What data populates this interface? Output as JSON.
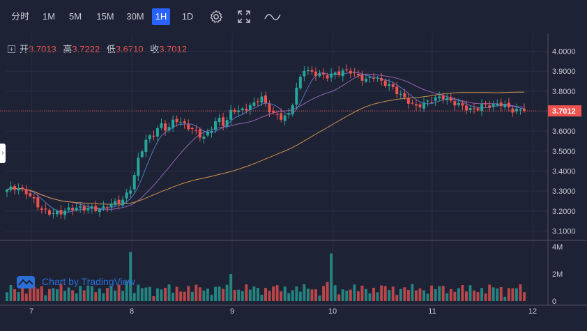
{
  "toolbar": {
    "intervals": [
      {
        "label": "分时",
        "active": false
      },
      {
        "label": "1M",
        "active": false
      },
      {
        "label": "5M",
        "active": false
      },
      {
        "label": "15M",
        "active": false
      },
      {
        "label": "30M",
        "active": false
      },
      {
        "label": "1H",
        "active": true
      },
      {
        "label": "1D",
        "active": false
      }
    ],
    "icons": [
      "settings-gear-icon",
      "fullscreen-icon",
      "chart-style-wave-icon"
    ]
  },
  "ohlc": {
    "open_label": "开",
    "open": "3.7013",
    "high_label": "高",
    "high": "3.7222",
    "low_label": "低",
    "low": "3.6710",
    "close_label": "收",
    "close": "3.7012"
  },
  "watermark": "Chart by TradingView",
  "colors": {
    "background": "#1e2235",
    "up": "#26a69a",
    "down": "#ef5350",
    "price_line": "#ef5350",
    "ma_fast": "#5b7fd6",
    "ma_mid": "#9c6bc4",
    "ma_slow": "#e0a050"
  },
  "chart_data": {
    "type": "candlestick",
    "price_axis": {
      "ticks": [
        "4.0000",
        "3.9000",
        "3.8000",
        "3.7000",
        "3.6000",
        "3.5000",
        "3.4000",
        "3.3000",
        "3.2000",
        "3.1000"
      ],
      "last_price_label": "3.7012",
      "range": [
        3.06,
        4.04
      ]
    },
    "volume_axis": {
      "ticks": [
        "4M",
        "2M",
        "0"
      ],
      "range": [
        0,
        4.2
      ]
    },
    "time_axis": {
      "labels": [
        "7",
        "8",
        "9",
        "10",
        "11",
        "12"
      ]
    },
    "last_price": 3.7012,
    "segments": [
      {
        "from": "7",
        "to": "7",
        "points": [
          3.3,
          3.31,
          3.32,
          3.31,
          3.3
        ]
      },
      {
        "from": "7",
        "to": "8",
        "points": [
          3.27,
          3.2,
          3.19,
          3.2,
          3.21,
          3.21,
          3.22,
          3.21,
          3.23,
          3.25
        ]
      },
      {
        "from": "8",
        "to": "9",
        "points": [
          3.33,
          3.47,
          3.55,
          3.58,
          3.64,
          3.61,
          3.66,
          3.63,
          3.62,
          3.6,
          3.57,
          3.6,
          3.66,
          3.63
        ]
      },
      {
        "from": "9",
        "to": "10",
        "points": [
          3.72,
          3.7,
          3.71,
          3.73,
          3.78,
          3.72,
          3.68,
          3.66,
          3.68,
          3.82,
          3.92,
          3.89,
          3.88,
          3.87
        ]
      },
      {
        "from": "10",
        "to": "11",
        "points": [
          3.89,
          3.9,
          3.9,
          3.87,
          3.86,
          3.88,
          3.84,
          3.82,
          3.79,
          3.76,
          3.72,
          3.73
        ]
      },
      {
        "from": "11",
        "to": "12",
        "points": [
          3.76,
          3.78,
          3.74,
          3.72,
          3.71,
          3.73,
          3.72,
          3.74,
          3.71,
          3.7
        ]
      }
    ],
    "volume_range_M": [
      0,
      3.6
    ],
    "volume_spikes": [
      {
        "date": "8",
        "value_M": 3.6
      },
      {
        "date": "9",
        "value_M": 2.0
      },
      {
        "date": "10",
        "value_M": 3.5
      }
    ],
    "moving_averages": [
      {
        "color": "#5b7fd6"
      },
      {
        "color": "#9c6bc4"
      },
      {
        "color": "#e0a050"
      }
    ],
    "grid": true
  }
}
